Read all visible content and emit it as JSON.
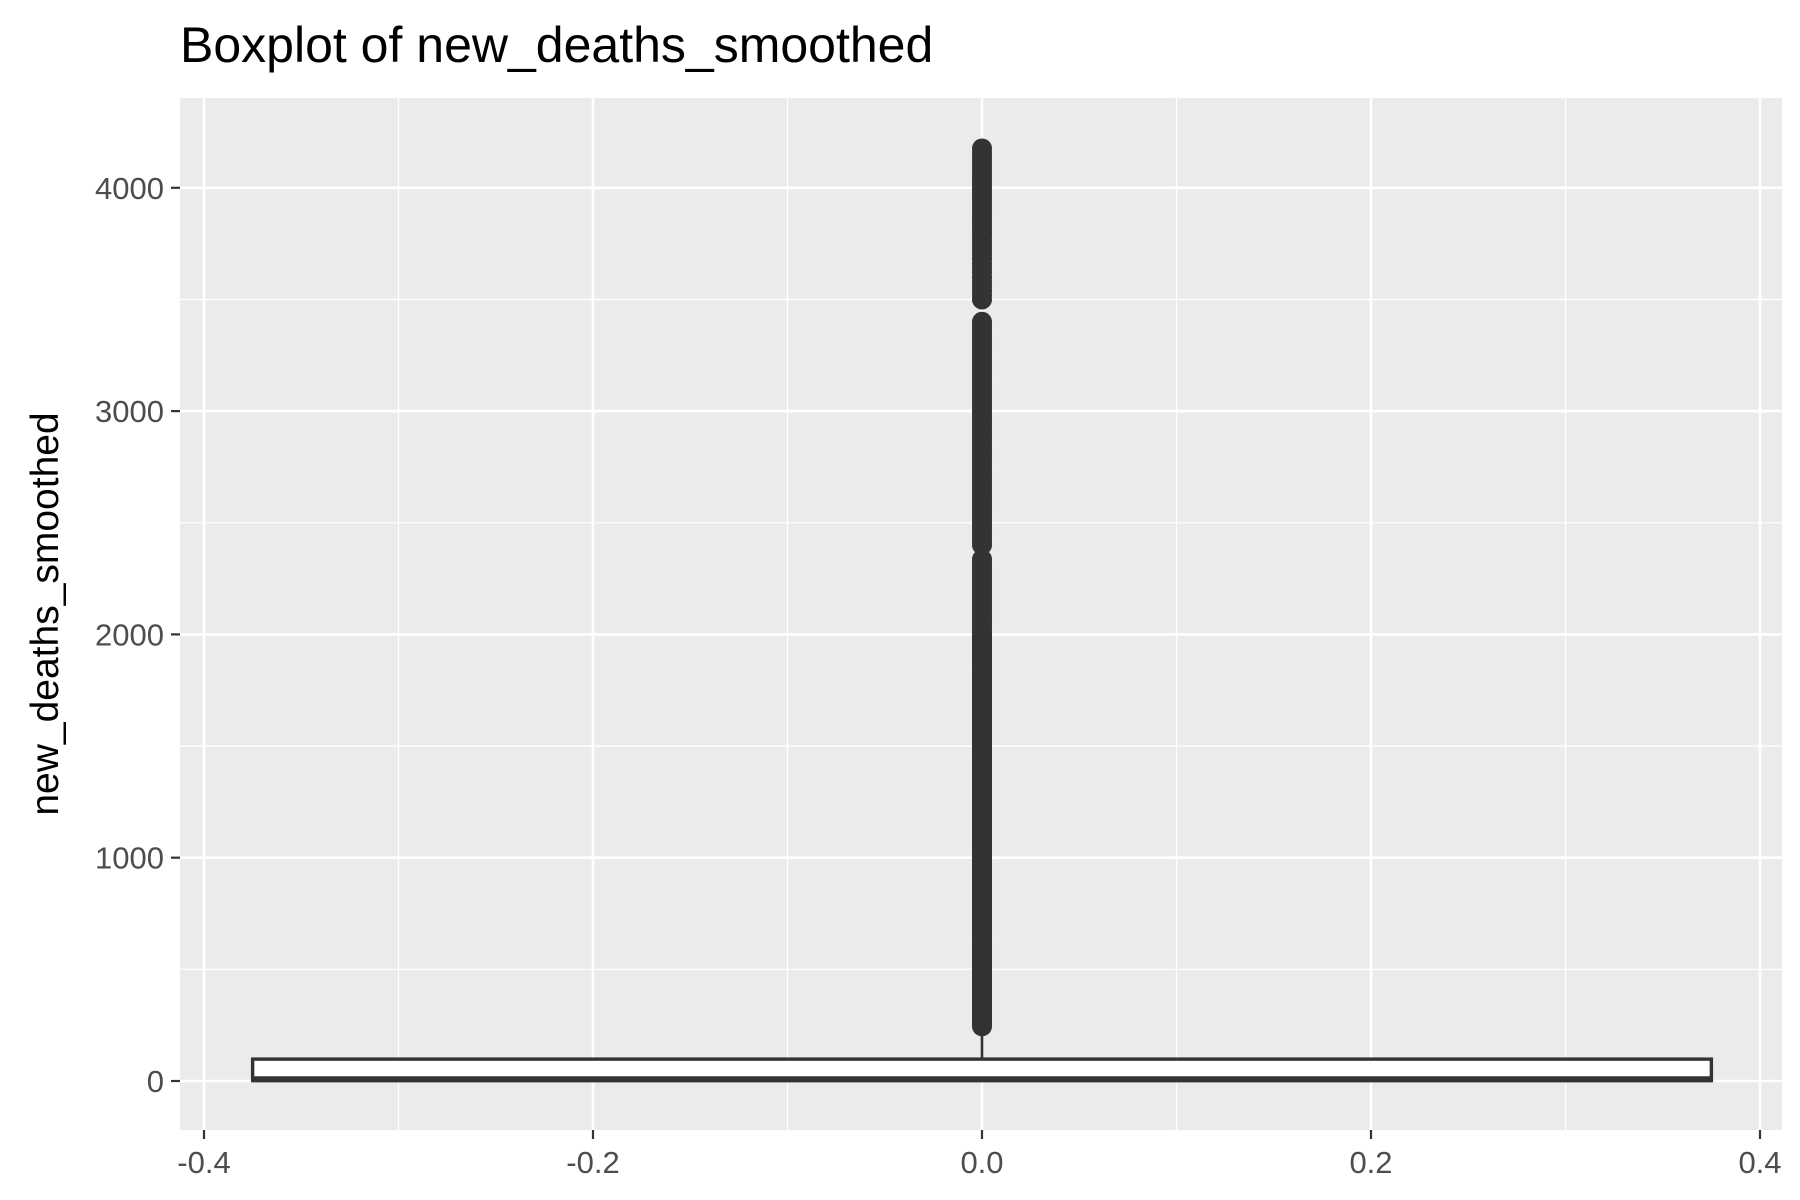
{
  "chart_data": {
    "type": "boxplot",
    "title": "Boxplot of new_deaths_smoothed",
    "xlabel": "",
    "ylabel": "new_deaths_smoothed",
    "xlim": [
      -0.4,
      0.4
    ],
    "ylim": [
      0,
      4200
    ],
    "x_ticks": [
      -0.4,
      -0.2,
      0.0,
      0.2,
      0.4
    ],
    "x_tick_labels": [
      "-0.4",
      "-0.2",
      "0.0",
      "0.2",
      "0.4"
    ],
    "y_ticks": [
      0,
      1000,
      2000,
      3000,
      4000
    ],
    "y_tick_labels": [
      "0",
      "1000",
      "2000",
      "3000",
      "4000"
    ],
    "grid": true,
    "legend": "none",
    "box": {
      "x_center": 0.0,
      "x_min": -0.375,
      "x_max": 0.375,
      "min": 0,
      "q1": 2,
      "median": 8,
      "q3": 98,
      "whisker_high": 244
    },
    "outliers": [
      {
        "from": 245,
        "to": 2000,
        "step": 8
      },
      {
        "from": 2000,
        "to": 2340,
        "step": 12
      },
      {
        "from": 2400,
        "to": 3000,
        "step": 14
      },
      {
        "from": 3000,
        "to": 3400,
        "step": 16
      },
      {
        "from": 3500,
        "to": 3760,
        "step": 20
      },
      {
        "from": 3780,
        "to": 4190,
        "step": 18
      }
    ],
    "colors": {
      "panel": "#ebebeb",
      "grid": "#ffffff",
      "box_outline": "#333333",
      "box_fill": "#ffffff",
      "outlier": "#333333",
      "tick_label": "#4d4d4d"
    }
  }
}
